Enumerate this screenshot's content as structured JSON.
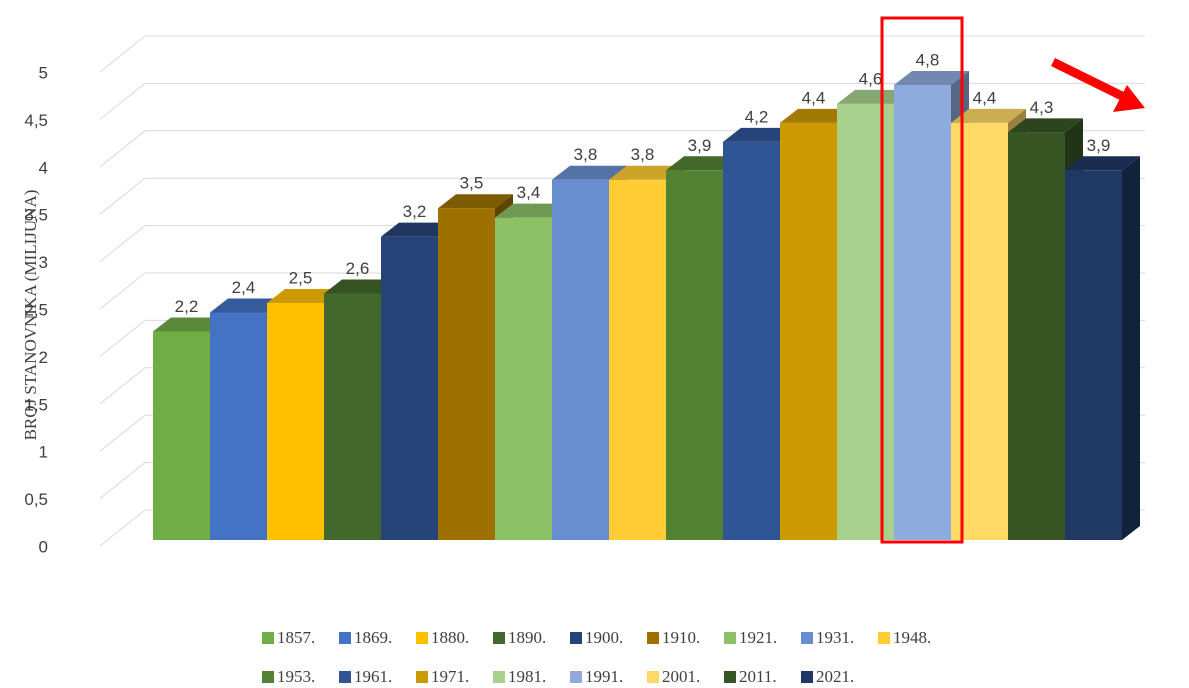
{
  "chart_data": {
    "type": "bar3d",
    "y_label": "BROJ STANOVNIKA (MILIJUNA)",
    "ylim": [
      0,
      5
    ],
    "yticks": [
      0,
      {
        "value": 0.5,
        "label": "0,5"
      },
      1,
      {
        "value": 1.5,
        "label": "1,5"
      },
      2,
      {
        "value": 2.5,
        "label": "2,5"
      },
      3,
      {
        "value": 3.5,
        "label": "3,5"
      },
      4,
      {
        "value": 4.5,
        "label": "4,5"
      },
      5
    ],
    "grid": true,
    "legend": "bottom",
    "series": [
      {
        "name": "1857.",
        "color": "#70ad47",
        "values": [
          2.2
        ],
        "value_labels": [
          "2,2"
        ]
      },
      {
        "name": "1869.",
        "color": "#4472c4",
        "values": [
          2.4
        ],
        "value_labels": [
          "2,4"
        ]
      },
      {
        "name": "1880.",
        "color": "#ffc000",
        "values": [
          2.5
        ],
        "value_labels": [
          "2,5"
        ]
      },
      {
        "name": "1890.",
        "color": "#43682b",
        "values": [
          2.6
        ],
        "value_labels": [
          "2,6"
        ]
      },
      {
        "name": "1900.",
        "color": "#264478",
        "values": [
          3.2
        ],
        "value_labels": [
          "3,2"
        ]
      },
      {
        "name": "1910.",
        "color": "#9e7000",
        "values": [
          3.5
        ],
        "value_labels": [
          "3,5"
        ]
      },
      {
        "name": "1921.",
        "color": "#8cc168",
        "values": [
          3.4
        ],
        "value_labels": [
          "3,4"
        ]
      },
      {
        "name": "1931.",
        "color": "#698ed0",
        "values": [
          3.8
        ],
        "value_labels": [
          "3,8"
        ]
      },
      {
        "name": "1948.",
        "color": "#ffcd33",
        "values": [
          3.8
        ],
        "value_labels": [
          "3,8"
        ]
      },
      {
        "name": "1953.",
        "color": "#548235",
        "values": [
          3.9
        ],
        "value_labels": [
          "3,9"
        ]
      },
      {
        "name": "1961.",
        "color": "#2f5597",
        "values": [
          4.2
        ],
        "value_labels": [
          "4,2"
        ]
      },
      {
        "name": "1971.",
        "color": "#cc9900",
        "values": [
          4.4
        ],
        "value_labels": [
          "4,4"
        ]
      },
      {
        "name": "1981.",
        "color": "#a9d18e",
        "values": [
          4.6
        ],
        "value_labels": [
          "4,6"
        ]
      },
      {
        "name": "1991.",
        "color": "#8faadc",
        "values": [
          4.8
        ],
        "value_labels": [
          "4,8"
        ]
      },
      {
        "name": "2001.",
        "color": "#ffd966",
        "values": [
          4.4
        ],
        "value_labels": [
          "4,4"
        ]
      },
      {
        "name": "2011.",
        "color": "#375623",
        "values": [
          4.3
        ],
        "value_labels": [
          "4,3"
        ]
      },
      {
        "name": "2021.",
        "color": "#203864",
        "values": [
          3.9
        ],
        "value_labels": [
          "3,9"
        ]
      }
    ]
  }
}
